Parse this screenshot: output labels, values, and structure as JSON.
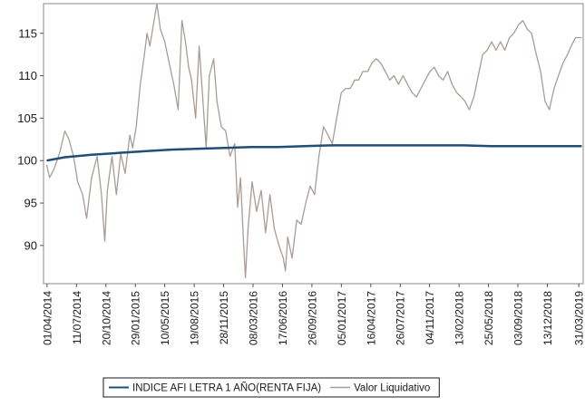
{
  "chart_data": {
    "type": "line",
    "title": "",
    "xlabel": "",
    "ylabel": "",
    "x_tick_labels": [
      "01/04/2014",
      "11/07/2014",
      "20/10/2014",
      "29/01/2015",
      "10/05/2015",
      "19/08/2015",
      "28/11/2015",
      "08/03/2016",
      "17/06/2016",
      "26/09/2016",
      "05/01/2017",
      "16/04/2017",
      "26/07/2017",
      "04/11/2017",
      "13/02/2018",
      "25/05/2018",
      "03/09/2018",
      "13/12/2018",
      "31/03/2019"
    ],
    "y_ticks": [
      90,
      95,
      100,
      105,
      110,
      115
    ],
    "ylim": [
      85.5,
      118.5
    ],
    "x_range": [
      "2014-03-20",
      "2019-04-15"
    ],
    "grid": false,
    "legend_position": "bottom",
    "series": [
      {
        "name": "INDICE AFI LETRA 1 AÑO(RENTA FIJA)",
        "color": "#1f4e79",
        "x": [
          "2014-03-31",
          "2014-06-01",
          "2014-09-01",
          "2014-12-01",
          "2015-03-01",
          "2015-06-01",
          "2015-09-01",
          "2015-12-01",
          "2016-03-01",
          "2016-06-01",
          "2016-09-01",
          "2016-12-01",
          "2017-03-01",
          "2017-06-01",
          "2017-09-01",
          "2017-12-01",
          "2018-03-01",
          "2018-06-01",
          "2018-09-01",
          "2018-12-01",
          "2019-04-10"
        ],
        "y": [
          100.0,
          100.4,
          100.7,
          100.9,
          101.1,
          101.3,
          101.4,
          101.5,
          101.6,
          101.6,
          101.7,
          101.8,
          101.8,
          101.8,
          101.8,
          101.8,
          101.8,
          101.7,
          101.7,
          101.7,
          101.7
        ]
      },
      {
        "name": "Valor Liquidativo",
        "color": "#a89c97",
        "x": [
          "2014-03-31",
          "2014-04-10",
          "2014-04-25",
          "2014-05-15",
          "2014-06-01",
          "2014-06-15",
          "2014-07-01",
          "2014-07-15",
          "2014-08-01",
          "2014-08-15",
          "2014-09-01",
          "2014-09-20",
          "2014-10-05",
          "2014-10-16",
          "2014-10-25",
          "2014-11-10",
          "2014-11-25",
          "2014-12-10",
          "2014-12-25",
          "2015-01-10",
          "2015-01-20",
          "2015-02-01",
          "2015-02-15",
          "2015-03-01",
          "2015-03-10",
          "2015-03-20",
          "2015-04-01",
          "2015-04-13",
          "2015-04-25",
          "2015-05-10",
          "2015-05-25",
          "2015-06-10",
          "2015-06-25",
          "2015-07-08",
          "2015-07-20",
          "2015-07-31",
          "2015-08-10",
          "2015-08-24",
          "2015-09-05",
          "2015-09-20",
          "2015-09-29",
          "2015-10-10",
          "2015-10-25",
          "2015-11-05",
          "2015-11-20",
          "2015-12-05",
          "2015-12-20",
          "2016-01-05",
          "2016-01-15",
          "2016-01-25",
          "2016-02-05",
          "2016-02-11",
          "2016-02-20",
          "2016-03-05",
          "2016-03-20",
          "2016-04-05",
          "2016-04-20",
          "2016-05-05",
          "2016-05-20",
          "2016-06-05",
          "2016-06-20",
          "2016-06-27",
          "2016-07-05",
          "2016-07-20",
          "2016-08-05",
          "2016-08-20",
          "2016-09-05",
          "2016-09-20",
          "2016-10-05",
          "2016-10-20",
          "2016-11-05",
          "2016-11-20",
          "2016-12-05",
          "2016-12-20",
          "2017-01-05",
          "2017-01-20",
          "2017-02-05",
          "2017-02-20",
          "2017-03-05",
          "2017-03-20",
          "2017-04-05",
          "2017-04-20",
          "2017-05-05",
          "2017-05-20",
          "2017-06-05",
          "2017-06-20",
          "2017-07-05",
          "2017-07-20",
          "2017-08-05",
          "2017-08-20",
          "2017-09-05",
          "2017-09-20",
          "2017-10-05",
          "2017-10-20",
          "2017-11-05",
          "2017-11-20",
          "2017-12-05",
          "2017-12-20",
          "2018-01-05",
          "2018-01-20",
          "2018-02-05",
          "2018-02-20",
          "2018-03-05",
          "2018-03-20",
          "2018-04-05",
          "2018-04-20",
          "2018-05-05",
          "2018-05-20",
          "2018-06-05",
          "2018-06-20",
          "2018-07-05",
          "2018-07-20",
          "2018-08-05",
          "2018-08-20",
          "2018-09-05",
          "2018-09-20",
          "2018-10-05",
          "2018-10-20",
          "2018-11-05",
          "2018-11-20",
          "2018-12-05",
          "2018-12-20",
          "2019-01-05",
          "2019-01-20",
          "2019-02-05",
          "2019-02-20",
          "2019-03-05",
          "2019-03-20",
          "2019-04-10"
        ],
        "y": [
          99.5,
          98.0,
          99.0,
          101.0,
          103.5,
          102.5,
          100.5,
          97.5,
          96.0,
          93.2,
          98.0,
          100.5,
          96.0,
          90.5,
          96.5,
          100.5,
          96.0,
          100.8,
          98.5,
          103.0,
          101.5,
          104.0,
          109.0,
          112.5,
          115.0,
          113.5,
          116.0,
          118.5,
          115.5,
          114.0,
          111.5,
          109.0,
          106.0,
          116.5,
          114.0,
          111.0,
          109.5,
          105.0,
          113.5,
          106.0,
          101.5,
          110.0,
          112.0,
          107.0,
          104.0,
          103.5,
          100.5,
          102.0,
          94.5,
          98.0,
          90.0,
          86.2,
          92.0,
          97.5,
          94.0,
          96.5,
          91.5,
          96.0,
          92.0,
          90.0,
          88.5,
          87.0,
          91.0,
          88.5,
          93.0,
          92.5,
          95.0,
          97.0,
          96.0,
          100.5,
          104.0,
          103.0,
          102.0,
          105.0,
          108.0,
          108.5,
          108.5,
          109.5,
          109.5,
          110.5,
          110.5,
          111.5,
          112.0,
          111.5,
          110.5,
          109.5,
          110.0,
          109.0,
          110.0,
          109.0,
          108.0,
          107.5,
          108.5,
          109.5,
          110.5,
          111.0,
          110.0,
          109.5,
          110.5,
          109.0,
          108.0,
          107.5,
          107.0,
          106.0,
          107.5,
          110.0,
          112.5,
          113.0,
          114.0,
          113.0,
          114.0,
          113.0,
          114.5,
          115.0,
          116.0,
          116.5,
          115.5,
          115.0,
          112.5,
          110.5,
          107.0,
          106.0,
          108.5,
          110.0,
          111.5,
          112.5,
          113.5,
          114.5,
          114.5
        ]
      }
    ]
  }
}
